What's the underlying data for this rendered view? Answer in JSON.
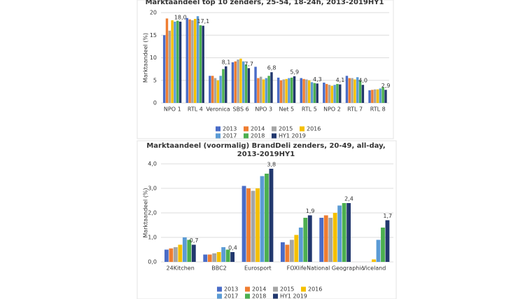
{
  "chart_data": [
    {
      "type": "bar",
      "title": "Marktaandeel top 10 zenders, 25-54, 18-24h, 2013-2019HY1",
      "y_label": "Marktaandeel (%)",
      "categories": [
        "NPO 1",
        "RTL 4",
        "Veronica",
        "SBS 6",
        "NPO 3",
        "Net 5",
        "RTL 5",
        "NPO 2",
        "RTL 7",
        "RTL 8"
      ],
      "ylim": [
        0,
        20
      ],
      "yticks": [
        0,
        5,
        10,
        15,
        20
      ],
      "grid": true,
      "series": [
        {
          "name": "2013",
          "color": "#4a6cc7",
          "values": [
            15.0,
            18.8,
            6.0,
            9.0,
            8.0,
            5.6,
            5.5,
            4.5,
            6.0,
            2.8
          ]
        },
        {
          "name": "2014",
          "color": "#ef7d31",
          "values": [
            18.7,
            18.5,
            6.0,
            9.2,
            5.5,
            5.0,
            5.3,
            4.2,
            5.5,
            2.9
          ]
        },
        {
          "name": "2015",
          "color": "#a5a5a5",
          "values": [
            16.0,
            18.3,
            5.5,
            9.6,
            5.8,
            5.2,
            5.2,
            4.0,
            5.5,
            3.0
          ]
        },
        {
          "name": "2016",
          "color": "#f5c000",
          "values": [
            18.3,
            18.6,
            5.0,
            9.8,
            5.2,
            5.3,
            5.0,
            3.8,
            5.2,
            3.0
          ]
        },
        {
          "name": "2017",
          "color": "#5b9bd5",
          "values": [
            18.0,
            19.2,
            6.0,
            9.2,
            5.5,
            5.5,
            4.6,
            4.0,
            5.7,
            3.2
          ]
        },
        {
          "name": "2018",
          "color": "#4caf50",
          "values": [
            18.2,
            17.2,
            7.5,
            8.5,
            6.0,
            5.6,
            4.4,
            4.2,
            5.0,
            3.5
          ]
        },
        {
          "name": "HY1 2019",
          "color": "#22386e",
          "values": [
            18.0,
            17.1,
            8.1,
            7.7,
            6.8,
            5.9,
            4.3,
            4.1,
            4.0,
            2.9
          ],
          "value_labels": [
            "18,0",
            "17,1",
            "8,1",
            "7,7",
            "6,8",
            "5,9",
            "4,3",
            "4,1",
            "4,0",
            "2,9"
          ]
        }
      ]
    },
    {
      "type": "bar",
      "title": "Marktaandeel (voormalig) BrandDeli zenders, 20-49, all-day, 2013-2019HY1",
      "y_label": "Marktaandeel (%)",
      "categories": [
        "24Kitchen",
        "BBC2",
        "Eurosport",
        "FOXlife",
        "National Geographic",
        "Viceland"
      ],
      "ylim": [
        0,
        4
      ],
      "yticks": [
        {
          "value": 0,
          "label": "0,0"
        },
        {
          "value": 1,
          "label": "1,0"
        },
        {
          "value": 2,
          "label": "2,0"
        },
        {
          "value": 3,
          "label": "3,0"
        },
        {
          "value": 4,
          "label": "4,0"
        }
      ],
      "grid": true,
      "series": [
        {
          "name": "2013",
          "color": "#4a6cc7",
          "values": [
            0.5,
            0.3,
            3.1,
            0.8,
            1.8,
            0.0
          ]
        },
        {
          "name": "2014",
          "color": "#ef7d31",
          "values": [
            0.55,
            0.3,
            3.0,
            0.7,
            1.9,
            0.0
          ]
        },
        {
          "name": "2015",
          "color": "#a5a5a5",
          "values": [
            0.6,
            0.35,
            2.9,
            0.9,
            1.8,
            0.0
          ]
        },
        {
          "name": "2016",
          "color": "#f5c000",
          "values": [
            0.7,
            0.4,
            3.0,
            1.1,
            2.0,
            0.1
          ]
        },
        {
          "name": "2017",
          "color": "#5b9bd5",
          "values": [
            1.0,
            0.6,
            3.5,
            1.4,
            2.3,
            0.9
          ]
        },
        {
          "name": "2018",
          "color": "#4caf50",
          "values": [
            0.9,
            0.5,
            3.6,
            1.8,
            2.4,
            1.4
          ]
        },
        {
          "name": "HY1 2019",
          "color": "#22386e",
          "values": [
            0.7,
            0.4,
            3.8,
            1.9,
            2.4,
            1.7
          ],
          "value_labels": [
            "0,7",
            "0,4",
            "3,8",
            "1,9",
            "2,4",
            "1,7"
          ]
        }
      ]
    }
  ]
}
